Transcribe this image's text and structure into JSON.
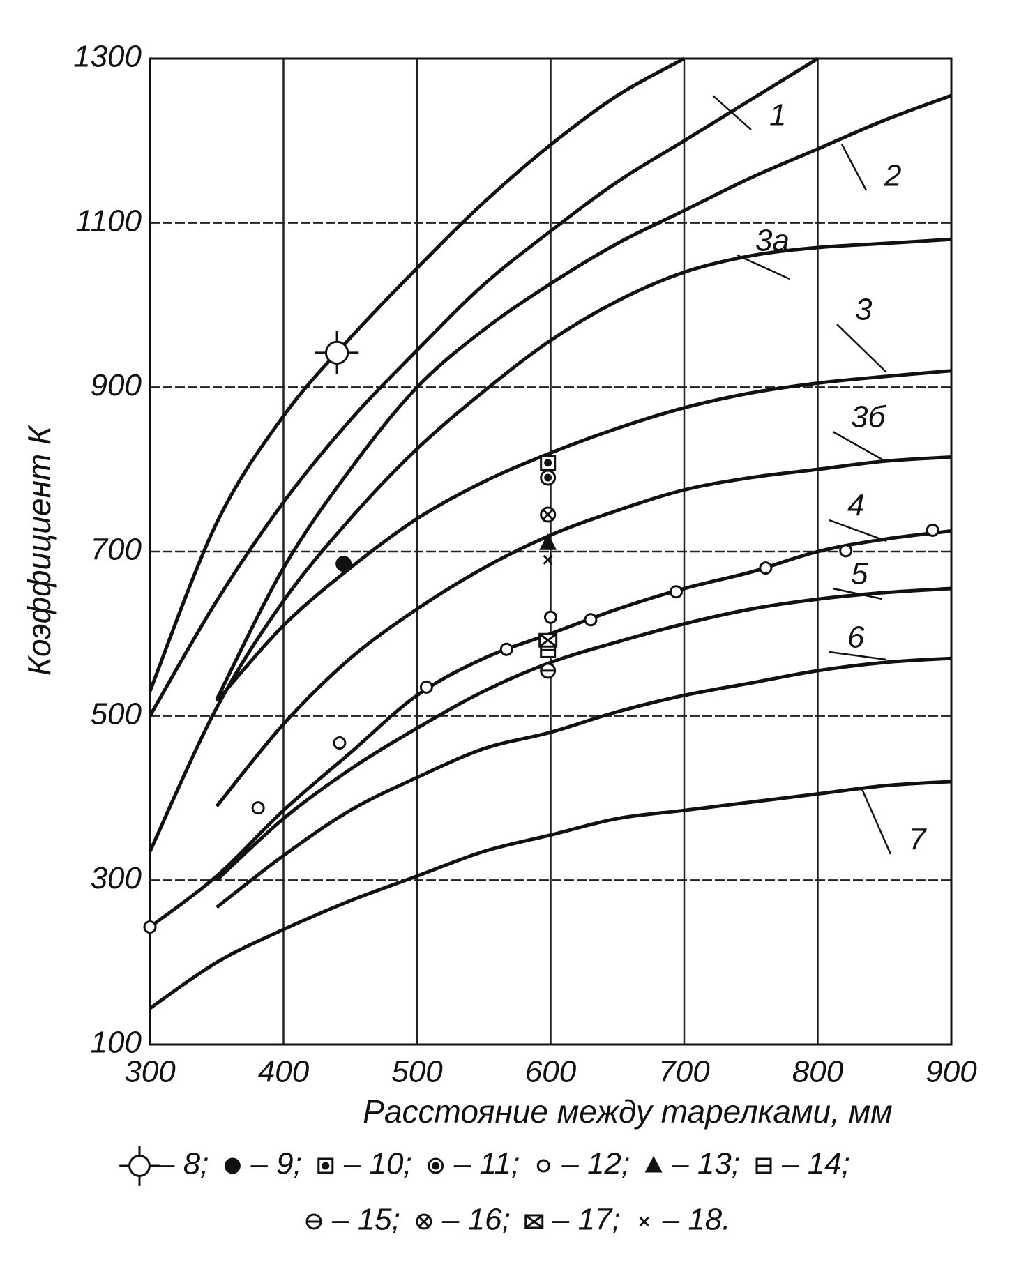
{
  "chart_data": {
    "type": "line",
    "x_label": "Расстояние между тарелками, мм",
    "y_label": "Коэффициент К",
    "xlim": [
      300,
      900
    ],
    "ylim": [
      100,
      1300
    ],
    "xticks": [
      300,
      400,
      500,
      600,
      700,
      800,
      900
    ],
    "yticks": [
      100,
      300,
      500,
      700,
      900,
      1100,
      1300
    ],
    "grid": true,
    "x": [
      300,
      350,
      400,
      450,
      500,
      550,
      600,
      650,
      700,
      750,
      800,
      850,
      900
    ],
    "series": [
      {
        "color": "#111",
        "values": [
          530,
          735,
          865,
          960,
          1045,
          1125,
          1195,
          1255,
          1300,
          null,
          null,
          null,
          null
        ]
      },
      {
        "name": "1",
        "color": "#111",
        "values": [
          500,
          640,
          760,
          860,
          945,
          1025,
          1090,
          1150,
          1200,
          1250,
          1300,
          null,
          null
        ]
      },
      {
        "name": "2",
        "color": "#111",
        "values": [
          null,
          520,
          680,
          800,
          900,
          970,
          1026,
          1075,
          1115,
          1155,
          1190,
          1225,
          1255
        ]
      },
      {
        "name": "3а",
        "color": "#111",
        "values": [
          335,
          510,
          640,
          740,
          825,
          895,
          957,
          1005,
          1040,
          1060,
          1070,
          1075,
          1080
        ]
      },
      {
        "name": "3",
        "color": "#111",
        "values": [
          null,
          518,
          610,
          680,
          740,
          785,
          820,
          850,
          875,
          893,
          905,
          913,
          920
        ]
      },
      {
        "name": "3б",
        "color": "#111",
        "values": [
          null,
          390,
          490,
          570,
          630,
          680,
          720,
          750,
          775,
          790,
          800,
          810,
          815
        ]
      },
      {
        "name": "4",
        "color": "#111",
        "values": [
          243,
          305,
          385,
          455,
          525,
          570,
          600,
          630,
          655,
          675,
          700,
          715,
          725
        ]
      },
      {
        "name": "5",
        "color": "#111",
        "values": [
          null,
          300,
          375,
          435,
          485,
          530,
          565,
          590,
          612,
          630,
          642,
          650,
          655
        ]
      },
      {
        "name": "6",
        "color": "#111",
        "values": [
          null,
          267,
          330,
          385,
          425,
          460,
          480,
          505,
          525,
          540,
          555,
          565,
          570
        ]
      },
      {
        "name": "7",
        "color": "#111",
        "values": [
          144,
          200,
          240,
          275,
          305,
          335,
          355,
          375,
          385,
          395,
          405,
          415,
          420
        ]
      }
    ],
    "markers": [
      {
        "name": "– 8;",
        "marker": "sun",
        "x": [
          440
        ],
        "values": [
          942
        ]
      },
      {
        "name": "– 9;",
        "marker": "filled",
        "x": [
          445
        ],
        "values": [
          685
        ]
      },
      {
        "name": "– 10;",
        "marker": "square-dot",
        "x": [
          598
        ],
        "values": [
          808
        ]
      },
      {
        "name": "– 11;",
        "marker": "circle-dot",
        "x": [
          598
        ],
        "values": [
          790
        ]
      },
      {
        "name": "– 12;",
        "marker": "circle",
        "x": [
          300,
          381,
          442,
          507,
          567,
          600,
          630,
          694,
          761,
          821,
          886
        ],
        "values": [
          243,
          388,
          467,
          535,
          581,
          620,
          617,
          651,
          680,
          701,
          726
        ]
      },
      {
        "name": "– 13;",
        "marker": "triangle",
        "x": [
          598
        ],
        "values": [
          710
        ]
      },
      {
        "name": "– 14;",
        "marker": "square-line",
        "x": [
          598
        ],
        "values": [
          580
        ]
      },
      {
        "name": "– 15;",
        "marker": "circle-line",
        "x": [
          598
        ],
        "values": [
          555
        ]
      },
      {
        "name": "– 16;",
        "marker": "circle-x",
        "x": [
          598
        ],
        "values": [
          745
        ]
      },
      {
        "name": "– 17;",
        "marker": "box-x",
        "x": [
          598
        ],
        "values": [
          592
        ]
      },
      {
        "name": "– 18.",
        "marker": "x",
        "x": [
          598
        ],
        "values": [
          690
        ]
      }
    ]
  }
}
